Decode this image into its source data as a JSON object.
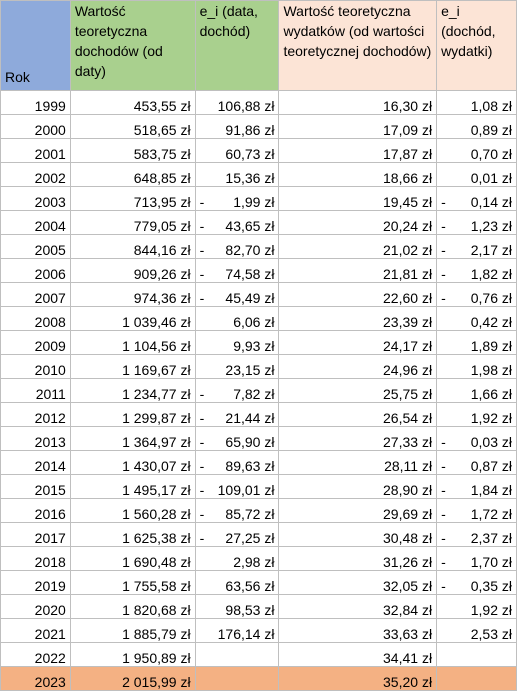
{
  "header": {
    "rok": "Rok",
    "col2": "Wartość teoretyczna dochodów (od daty)",
    "col3": "e_i  (data, dochód)",
    "col4": "Wartość teoretyczna wydatków (od wartości teoretycznej dochodów)",
    "col5": "e_i (dochód, wydatki)"
  },
  "rows": [
    {
      "year": "1999",
      "doch": "453,55 zł",
      "e1": "106,88 zł",
      "e1neg": false,
      "wyd": "16,30 zł",
      "e2": "1,08 zł",
      "e2neg": false
    },
    {
      "year": "2000",
      "doch": "518,65 zł",
      "e1": "91,86 zł",
      "e1neg": false,
      "wyd": "17,09 zł",
      "e2": "0,89 zł",
      "e2neg": false
    },
    {
      "year": "2001",
      "doch": "583,75 zł",
      "e1": "60,73 zł",
      "e1neg": false,
      "wyd": "17,87 zł",
      "e2": "0,70 zł",
      "e2neg": false
    },
    {
      "year": "2002",
      "doch": "648,85 zł",
      "e1": "15,36 zł",
      "e1neg": false,
      "wyd": "18,66 zł",
      "e2": "0,01 zł",
      "e2neg": false
    },
    {
      "year": "2003",
      "doch": "713,95 zł",
      "e1": "1,99 zł",
      "e1neg": true,
      "wyd": "19,45 zł",
      "e2": "0,14 zł",
      "e2neg": true
    },
    {
      "year": "2004",
      "doch": "779,05 zł",
      "e1": "43,65 zł",
      "e1neg": true,
      "wyd": "20,24 zł",
      "e2": "1,23 zł",
      "e2neg": true
    },
    {
      "year": "2005",
      "doch": "844,16 zł",
      "e1": "82,70 zł",
      "e1neg": true,
      "wyd": "21,02 zł",
      "e2": "2,17 zł",
      "e2neg": true
    },
    {
      "year": "2006",
      "doch": "909,26 zł",
      "e1": "74,58 zł",
      "e1neg": true,
      "wyd": "21,81 zł",
      "e2": "1,82 zł",
      "e2neg": true
    },
    {
      "year": "2007",
      "doch": "974,36 zł",
      "e1": "45,49 zł",
      "e1neg": true,
      "wyd": "22,60 zł",
      "e2": "0,76 zł",
      "e2neg": true
    },
    {
      "year": "2008",
      "doch": "1 039,46 zł",
      "e1": "6,06 zł",
      "e1neg": false,
      "wyd": "23,39 zł",
      "e2": "0,42 zł",
      "e2neg": false
    },
    {
      "year": "2009",
      "doch": "1 104,56 zł",
      "e1": "9,93 zł",
      "e1neg": false,
      "wyd": "24,17 zł",
      "e2": "1,89 zł",
      "e2neg": false
    },
    {
      "year": "2010",
      "doch": "1 169,67 zł",
      "e1": "23,15 zł",
      "e1neg": false,
      "wyd": "24,96 zł",
      "e2": "1,98 zł",
      "e2neg": false
    },
    {
      "year": "2011",
      "doch": "1 234,77 zł",
      "e1": "7,82 zł",
      "e1neg": true,
      "wyd": "25,75 zł",
      "e2": "1,66 zł",
      "e2neg": false
    },
    {
      "year": "2012",
      "doch": "1 299,87 zł",
      "e1": "21,44 zł",
      "e1neg": true,
      "wyd": "26,54 zł",
      "e2": "1,92 zł",
      "e2neg": false
    },
    {
      "year": "2013",
      "doch": "1 364,97 zł",
      "e1": "65,90 zł",
      "e1neg": true,
      "wyd": "27,33 zł",
      "e2": "0,03 zł",
      "e2neg": true
    },
    {
      "year": "2014",
      "doch": "1 430,07 zł",
      "e1": "89,63 zł",
      "e1neg": true,
      "wyd": "28,11 zł",
      "e2": "0,87 zł",
      "e2neg": true
    },
    {
      "year": "2015",
      "doch": "1 495,17 zł",
      "e1": "109,01 zł",
      "e1neg": true,
      "wyd": "28,90 zł",
      "e2": "1,84 zł",
      "e2neg": true
    },
    {
      "year": "2016",
      "doch": "1 560,28 zł",
      "e1": "85,72 zł",
      "e1neg": true,
      "wyd": "29,69 zł",
      "e2": "1,72 zł",
      "e2neg": true
    },
    {
      "year": "2017",
      "doch": "1 625,38 zł",
      "e1": "27,25 zł",
      "e1neg": true,
      "wyd": "30,48 zł",
      "e2": "2,37 zł",
      "e2neg": true
    },
    {
      "year": "2018",
      "doch": "1 690,48 zł",
      "e1": "2,98 zł",
      "e1neg": false,
      "wyd": "31,26 zł",
      "e2": "1,70 zł",
      "e2neg": true
    },
    {
      "year": "2019",
      "doch": "1 755,58 zł",
      "e1": "63,56 zł",
      "e1neg": false,
      "wyd": "32,05 zł",
      "e2": "0,35 zł",
      "e2neg": true
    },
    {
      "year": "2020",
      "doch": "1 820,68 zł",
      "e1": "98,53 zł",
      "e1neg": false,
      "wyd": "32,84 zł",
      "e2": "1,92 zł",
      "e2neg": false
    },
    {
      "year": "2021",
      "doch": "1 885,79 zł",
      "e1": "176,14 zł",
      "e1neg": false,
      "wyd": "33,63 zł",
      "e2": "2,53 zł",
      "e2neg": false
    },
    {
      "year": "2022",
      "doch": "1 950,89 zł",
      "e1": "",
      "e1neg": false,
      "wyd": "34,41 zł",
      "e2": "",
      "e2neg": false
    },
    {
      "year": "2023",
      "doch": "2 015,99 zł",
      "e1": "",
      "e1neg": false,
      "wyd": "35,20 zł",
      "e2": "",
      "e2neg": false,
      "highlight": true
    }
  ],
  "colors": {
    "rok_header": "#8eaadb",
    "green_header": "#a9d08e",
    "peach_header": "#fce4d6",
    "highlight_row": "#f4b183",
    "gridline": "#bfbfbf"
  }
}
